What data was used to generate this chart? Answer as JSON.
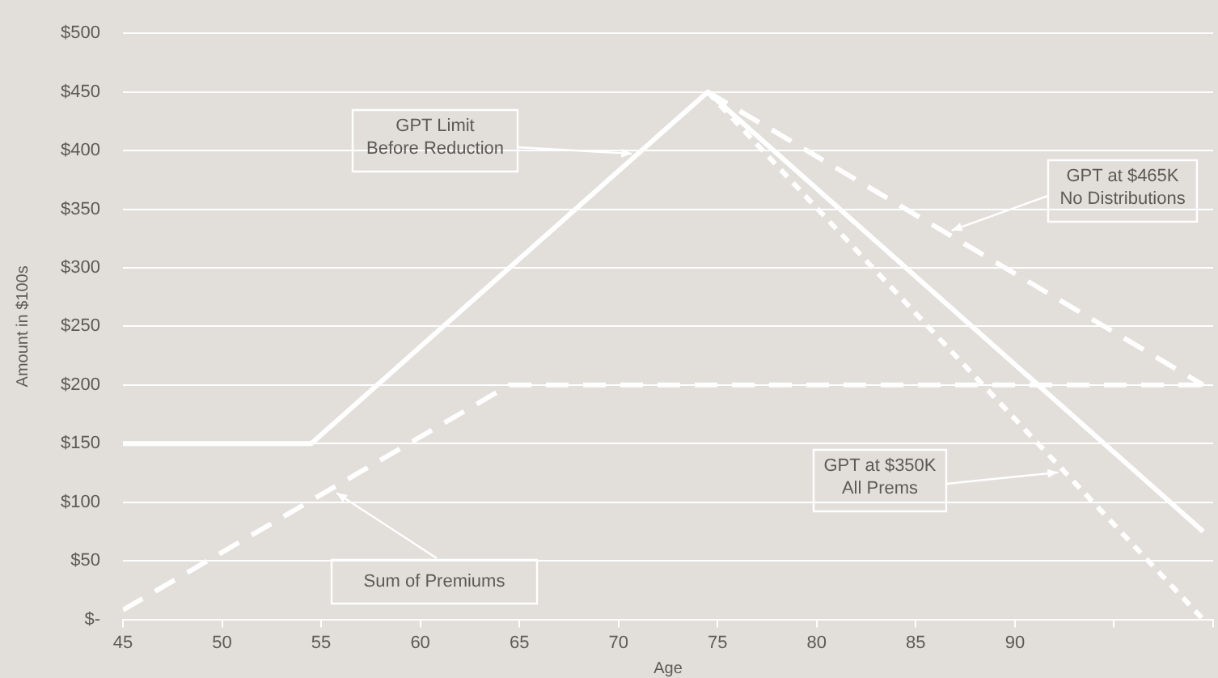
{
  "chart_data": {
    "type": "line",
    "xlabel": "Age",
    "ylabel": "Amount in $100s",
    "xlim": [
      45,
      100
    ],
    "xticks": [
      45,
      50,
      55,
      60,
      65,
      70,
      75,
      80,
      85,
      90,
      {
        "value": 95,
        "label": null
      },
      {
        "value": 100,
        "label": null
      }
    ],
    "ylim": [
      0,
      500
    ],
    "yticks": [
      {
        "value": 0,
        "label": "$-"
      },
      {
        "value": 50,
        "label": "$50"
      },
      {
        "value": 100,
        "label": "$100"
      },
      {
        "value": 150,
        "label": "$150"
      },
      {
        "value": 200,
        "label": "$200"
      },
      {
        "value": 250,
        "label": "$250"
      },
      {
        "value": 300,
        "label": "$300"
      },
      {
        "value": 350,
        "label": "$350"
      },
      {
        "value": 400,
        "label": "$400"
      },
      {
        "value": 450,
        "label": "$450"
      },
      {
        "value": 500,
        "label": "$500"
      }
    ],
    "grid": "y",
    "legend": false,
    "marker": "none",
    "annotations": [
      {
        "text": "GPT Limit\nBefore Reduction",
        "x": 71,
        "y": 397
      },
      {
        "text": "GPT at $465K\nNo Distributions",
        "x": 86.5,
        "y": 330
      },
      {
        "text": "GPT at $350K\nAll Prems",
        "x": 92.5,
        "y": 126
      },
      {
        "text": "Sum of Premiums",
        "x": 55.5,
        "y": 111
      }
    ],
    "series": [
      {
        "color": "#ffffff",
        "line_style": "solid",
        "x": [
          45,
          54.5,
          74.5,
          99.5
        ],
        "values": [
          150,
          150,
          450,
          75
        ]
      },
      {
        "color": "#ffffff",
        "line_style": "dashed",
        "x": [
          74.5,
          99.5
        ],
        "values": [
          450,
          200
        ]
      },
      {
        "color": "#ffffff",
        "line_style": "dotted",
        "x": [
          74.5,
          99.5
        ],
        "values": [
          450,
          0
        ]
      },
      {
        "color": "#ffffff",
        "line_style": "dashed",
        "x": [
          45,
          64.5,
          99.5
        ],
        "values": [
          8,
          200,
          200
        ]
      }
    ]
  }
}
